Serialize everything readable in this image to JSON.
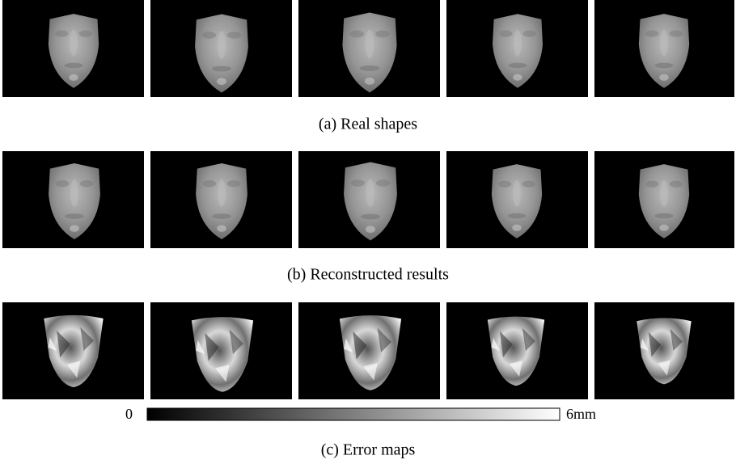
{
  "captions": [
    "(a) Real shapes",
    "(b) Reconstructed results",
    "(c) Error maps"
  ],
  "colorbar": {
    "labels": [
      "0",
      "6mm"
    ]
  }
}
